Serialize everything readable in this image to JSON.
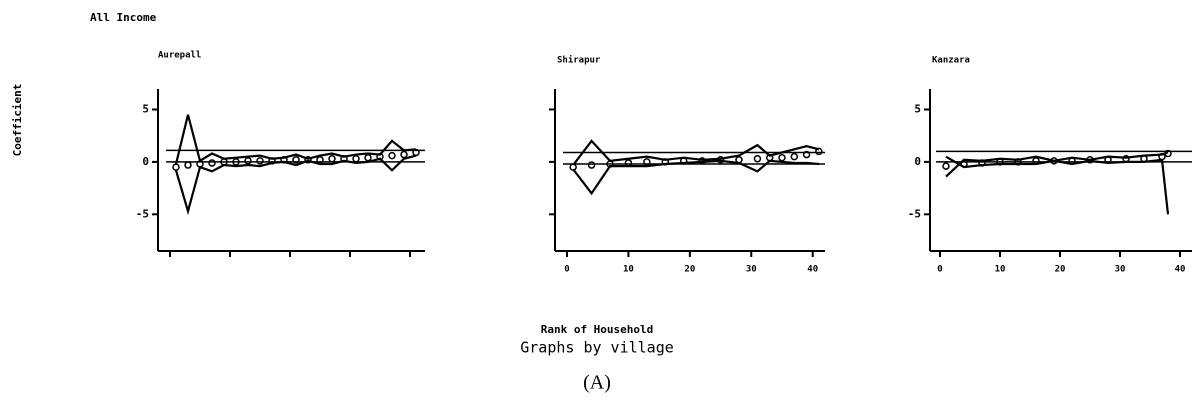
{
  "title": "All Income",
  "ylabel": "Coefficient",
  "xlabel": "Rank of Household",
  "by_note": "Graphs by village",
  "caption": "(A)",
  "chart_data": [
    {
      "type": "line",
      "title": "Aurepall",
      "xlim": [
        0,
        42.5
      ],
      "ylim": [
        -8.5,
        6
      ],
      "yticks": [
        -5,
        0,
        5
      ],
      "xticks": [
        0,
        10,
        20,
        30,
        40
      ],
      "show_xtick_labels": false,
      "show_ytick_labels": true,
      "hlines": [
        1.1,
        0
      ],
      "color": "#000000",
      "x": [
        1,
        3,
        5,
        7,
        9,
        11,
        13,
        15,
        17,
        19,
        21,
        23,
        25,
        27,
        29,
        31,
        33,
        35,
        37,
        39,
        41
      ],
      "series": [
        {
          "style": "points",
          "values": [
            -0.5,
            -0.3,
            -0.2,
            -0.1,
            0,
            0,
            0.1,
            0.1,
            0.1,
            0.2,
            0.2,
            0.2,
            0.2,
            0.3,
            0.3,
            0.3,
            0.4,
            0.5,
            0.6,
            0.7,
            0.9
          ]
        },
        {
          "style": "line",
          "values": [
            -0.2,
            4.5,
            0.1,
            0.8,
            0.3,
            0.4,
            0.5,
            0.6,
            0.3,
            0.4,
            0.7,
            0.3,
            0.6,
            0.8,
            0.5,
            0.7,
            0.8,
            0.7,
            2.0,
            1.1,
            1.2
          ]
        },
        {
          "style": "line",
          "values": [
            -0.8,
            -4.7,
            -0.5,
            -0.9,
            -0.3,
            -0.4,
            -0.3,
            -0.4,
            -0.1,
            0,
            -0.3,
            0.1,
            -0.2,
            -0.2,
            0.1,
            -0.1,
            0,
            0.3,
            -0.8,
            0.3,
            0.6
          ]
        }
      ]
    },
    {
      "type": "line",
      "title": "Shirapur",
      "xlim": [
        0,
        42
      ],
      "ylim": [
        -8.5,
        6
      ],
      "yticks": [
        -5,
        0,
        5
      ],
      "xticks": [
        0,
        10,
        20,
        30,
        40
      ],
      "show_xtick_labels": true,
      "show_ytick_labels": false,
      "hlines": [
        0.9,
        -0.2
      ],
      "color": "#000000",
      "x": [
        1,
        4,
        7,
        10,
        13,
        16,
        19,
        22,
        25,
        28,
        31,
        33,
        35,
        37,
        39,
        41
      ],
      "series": [
        {
          "style": "points",
          "values": [
            -0.5,
            -0.3,
            -0.2,
            -0.1,
            0,
            0,
            0.1,
            0.1,
            0.2,
            0.2,
            0.3,
            0.4,
            0.4,
            0.5,
            0.7,
            1.0
          ]
        },
        {
          "style": "line",
          "values": [
            -0.3,
            2.0,
            0.1,
            0.3,
            0.5,
            0.2,
            0.4,
            0.2,
            0.3,
            0.6,
            1.6,
            0.6,
            0.9,
            1.2,
            1.5,
            1.2
          ]
        },
        {
          "style": "line",
          "values": [
            -0.7,
            -3.0,
            -0.4,
            -0.4,
            -0.4,
            -0.2,
            -0.1,
            0,
            0.1,
            -0.1,
            -0.9,
            0.1,
            0,
            -0.1,
            -0.1,
            -0.2
          ]
        }
      ]
    },
    {
      "type": "line",
      "title": "Kanzara",
      "xlim": [
        0,
        42
      ],
      "ylim": [
        -8.5,
        6
      ],
      "yticks": [
        -5,
        0,
        5
      ],
      "xticks": [
        0,
        10,
        20,
        30,
        40
      ],
      "show_xtick_labels": true,
      "show_ytick_labels": true,
      "hlines": [
        1.0,
        0
      ],
      "color": "#000000",
      "x": [
        1,
        4,
        7,
        10,
        13,
        16,
        19,
        22,
        25,
        28,
        31,
        34,
        37,
        38
      ],
      "series": [
        {
          "style": "points",
          "values": [
            -0.4,
            -0.2,
            -0.1,
            0,
            0,
            0.1,
            0.1,
            0.1,
            0.2,
            0.2,
            0.3,
            0.3,
            0.5,
            0.8
          ]
        },
        {
          "style": "line",
          "values": [
            -1.4,
            0.2,
            0.1,
            0.3,
            0.2,
            0.5,
            0.1,
            0.4,
            0.2,
            0.5,
            0.4,
            0.6,
            0.7,
            0.9
          ]
        },
        {
          "style": "line",
          "values": [
            0.5,
            -0.5,
            -0.3,
            -0.2,
            -0.2,
            -0.2,
            0.1,
            -0.2,
            0.1,
            -0.1,
            0,
            0,
            0.2,
            -5.0
          ]
        }
      ]
    }
  ]
}
